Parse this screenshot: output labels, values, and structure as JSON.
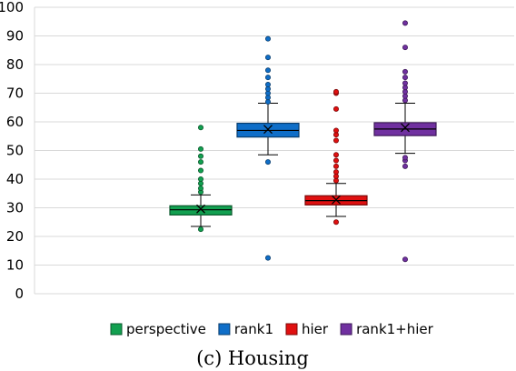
{
  "caption": "(c) Housing",
  "chart_data": {
    "type": "box",
    "ylim": [
      0,
      100
    ],
    "yticks": [
      0,
      10,
      20,
      30,
      40,
      50,
      60,
      70,
      80,
      90,
      100
    ],
    "grid": true,
    "legend_position": "bottom",
    "series": [
      {
        "name": "perspective",
        "color": "#12a050",
        "q1": 27.5,
        "median": 29.3,
        "q3": 30.7,
        "mean": 29.6,
        "whisker_low": 23.5,
        "whisker_high": 34.5,
        "outliers": [
          22.5,
          35.5,
          36.8,
          38.5,
          40.0,
          43.0,
          46.0,
          48.0,
          50.5,
          58.0
        ]
      },
      {
        "name": "rank1",
        "color": "#0f6ec8",
        "q1": 54.7,
        "median": 57.0,
        "q3": 59.5,
        "mean": 57.4,
        "whisker_low": 48.5,
        "whisker_high": 66.5,
        "outliers": [
          12.5,
          46.0,
          67.0,
          68.5,
          70.0,
          71.5,
          73.0,
          75.5,
          78.0,
          82.5,
          89.0
        ]
      },
      {
        "name": "hier",
        "color": "#e01010",
        "q1": 31.0,
        "median": 32.5,
        "q3": 34.2,
        "mean": 32.8,
        "whisker_low": 27.0,
        "whisker_high": 38.5,
        "outliers": [
          25.0,
          39.5,
          41.0,
          42.5,
          44.5,
          46.5,
          48.5,
          53.5,
          55.5,
          57.0,
          64.5,
          70.0,
          70.5
        ]
      },
      {
        "name": "rank1+hier",
        "color": "#7030a0",
        "q1": 55.2,
        "median": 57.5,
        "q3": 59.7,
        "mean": 58.0,
        "whisker_low": 49.0,
        "whisker_high": 66.5,
        "outliers": [
          12.0,
          44.5,
          46.5,
          47.5,
          67.5,
          69.0,
          70.5,
          72.0,
          73.5,
          75.5,
          77.5,
          86.0,
          94.5
        ]
      }
    ]
  }
}
